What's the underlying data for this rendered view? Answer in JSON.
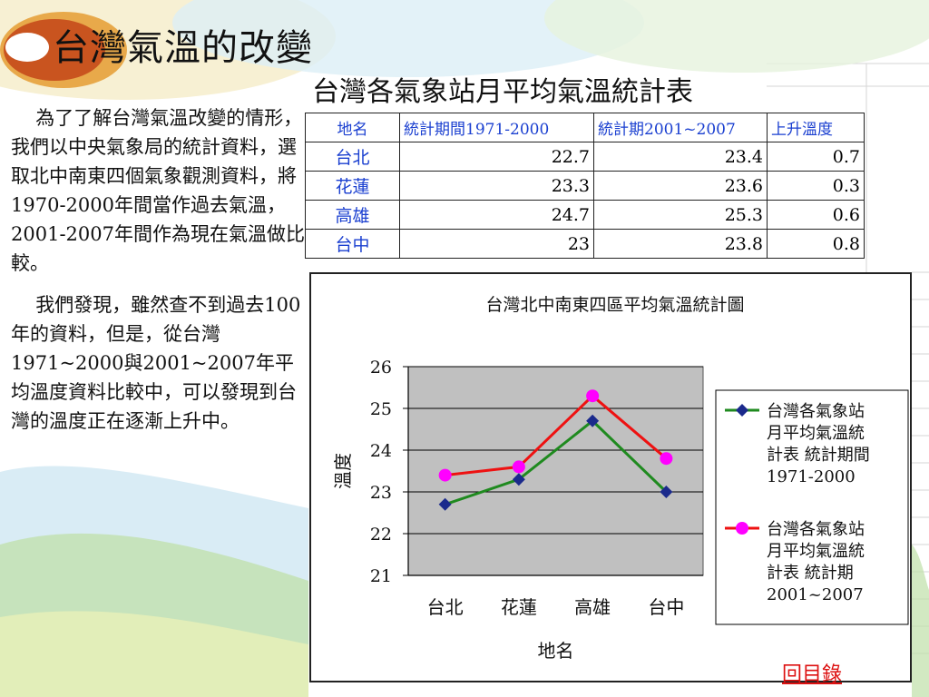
{
  "slide": {
    "title": "台灣氣溫的改變",
    "paragraphs": [
      "為了了解台灣氣溫改變的情形，我們以中央氣象局的統計資料，選取北中南東四個氣象觀測資料，將1970-2000年間當作過去氣溫，2001-2007年間作為現在氣溫做比較。",
      "我們發現，雖然查不到過去100年的資料，但是，從台灣1971~2000與2001~2007年平均溫度資料比較中，可以發現到台灣的溫度正在逐漸上升中。"
    ],
    "back_link": "回目錄"
  },
  "table": {
    "title": "台灣各氣象站月平均氣溫統計表",
    "headers": [
      "地名",
      "統計期間1971-2000",
      "統計期2001~2007",
      "上升溫度"
    ],
    "rows": [
      [
        "台北",
        "22.7",
        "23.4",
        "0.7"
      ],
      [
        "花蓮",
        "23.3",
        "23.6",
        "0.3"
      ],
      [
        "高雄",
        "24.7",
        "25.3",
        "0.6"
      ],
      [
        "台中",
        "23",
        "23.8",
        "0.8"
      ]
    ]
  },
  "chart_data": {
    "type": "line",
    "title": "台灣北中南東四區平均氣溫統計圖",
    "xlabel": "地名",
    "ylabel": "溫度",
    "categories": [
      "台北",
      "花蓮",
      "高雄",
      "台中"
    ],
    "ylim": [
      21,
      26
    ],
    "yticks": [
      "21",
      "22",
      "23",
      "24",
      "25",
      "26"
    ],
    "grid": true,
    "legend_position": "right",
    "plot_background": "#c0c0c0",
    "series": [
      {
        "name": "台灣各氣象站月平均氣溫統計表 統計期間1971-2000",
        "values": [
          22.7,
          23.3,
          24.7,
          23.0
        ],
        "color": "#1f8a1f",
        "marker_color": "#1b2a8c",
        "marker": "diamond"
      },
      {
        "name": "台灣各氣象站月平均氣溫統計表 統計期2001~2007",
        "values": [
          23.4,
          23.6,
          25.3,
          23.8
        ],
        "color": "#ee1111",
        "marker_color": "#ff00ff",
        "marker": "circle"
      }
    ]
  },
  "colors": {
    "header_text": "#1a3fd0",
    "link": "#dd1111"
  }
}
